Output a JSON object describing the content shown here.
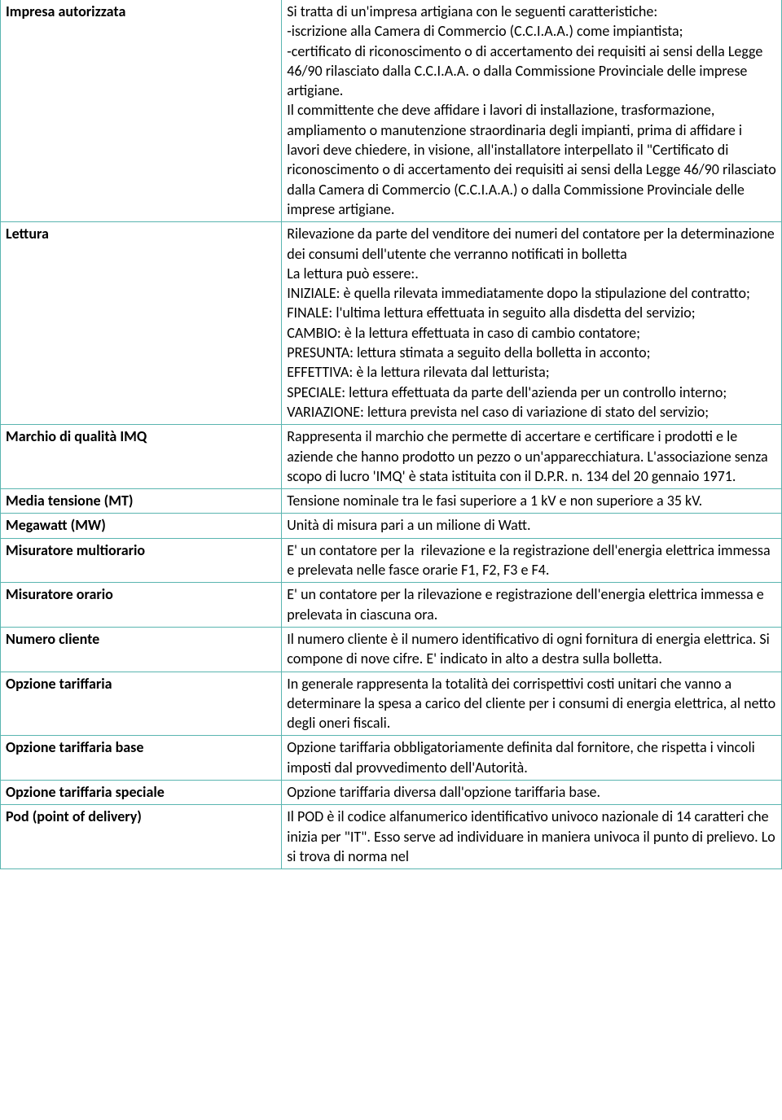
{
  "table": {
    "border_color": "#5ab5b0",
    "font_family": "Calibri",
    "font_size_pt": 13.5,
    "term_col_pct": 36,
    "def_col_pct": 64,
    "rows": [
      {
        "term": "Impresa autorizzata",
        "definition": "Si tratta di un'impresa artigiana con le seguenti caratteristiche:\n-iscrizione alla Camera di Commercio (C.C.I.A.A.) come impiantista;\n-certificato di riconoscimento o di accertamento dei requisiti ai sensi della Legge 46/90 rilasciato dalla C.C.I.A.A. o dalla Commissione Provinciale delle imprese artigiane.\nIl committente che deve affidare i lavori di installazione, trasformazione, ampliamento o manutenzione straordinaria degli impianti, prima di affidare i lavori deve chiedere, in visione, all'installatore interpellato il \"Certificato di riconoscimento o di accertamento dei requisiti ai sensi della Legge 46/90 rilasciato dalla Camera di Commercio (C.C.I.A.A.) o dalla Commissione Provinciale delle imprese artigiane."
      },
      {
        "term": "Lettura",
        "definition": "Rilevazione da parte del venditore dei numeri del contatore per la determinazione dei consumi dell'utente che verranno notificati in bolletta\nLa lettura può essere:.\nINIZIALE: è quella rilevata immediatamente dopo la stipulazione del contratto;\nFINALE: l'ultima lettura effettuata in seguito alla disdetta del servizio;\nCAMBIO: è la lettura effettuata in caso di cambio contatore;\nPRESUNTA: lettura stimata a seguito della bolletta in acconto;\nEFFETTIVA: è la lettura rilevata dal letturista;\nSPECIALE: lettura effettuata da parte dell'azienda per un controllo interno;\nVARIAZIONE: lettura prevista nel caso di variazione di stato del servizio;"
      },
      {
        "term": "Marchio di qualità IMQ",
        "definition": "Rappresenta il marchio che permette di accertare e certificare i prodotti e le aziende che hanno prodotto un pezzo o un'apparecchiatura. L'associazione senza scopo di lucro 'IMQ' è stata istituita con il D.P.R. n. 134 del 20 gennaio 1971."
      },
      {
        "term": "Media tensione (MT)",
        "definition": "Tensione nominale tra le fasi superiore a 1 kV e non superiore a 35 kV."
      },
      {
        "term": "Megawatt (MW)",
        "definition": "Unità di misura pari a un milione di Watt."
      },
      {
        "term": "Misuratore multiorario",
        "definition": "E' un contatore per la  rilevazione e la registrazione dell'energia elettrica immessa e prelevata nelle fasce orarie F1, F2, F3 e F4."
      },
      {
        "term": "Misuratore orario",
        "definition": "E' un contatore per la rilevazione e registrazione dell'energia elettrica immessa e prelevata in ciascuna ora."
      },
      {
        "term": "Numero cliente",
        "definition": "Il numero cliente è il numero identificativo di ogni fornitura di energia elettrica. Si compone di nove cifre. E' indicato in alto a destra sulla bolletta."
      },
      {
        "term": "Opzione tariffaria",
        "definition": "In generale rappresenta la totalità dei corrispettivi costi unitari che vanno a determinare la spesa a carico del cliente per i consumi di energia elettrica, al netto degli oneri fiscali."
      },
      {
        "term": "Opzione tariffaria base",
        "definition": "Opzione tariffaria obbligatoriamente definita dal fornitore, che rispetta i vincoli imposti dal provvedimento dell'Autorità."
      },
      {
        "term": "Opzione tariffaria speciale",
        "definition": "Opzione tariffaria diversa dall'opzione tariffaria base."
      },
      {
        "term": "Pod (point of delivery)",
        "definition": "Il POD è il codice alfanumerico identificativo univoco nazionale di 14 caratteri che inizia per \"IT\". Esso serve ad individuare in maniera univoca il punto di prelievo. Lo si trova di norma nel"
      }
    ]
  }
}
